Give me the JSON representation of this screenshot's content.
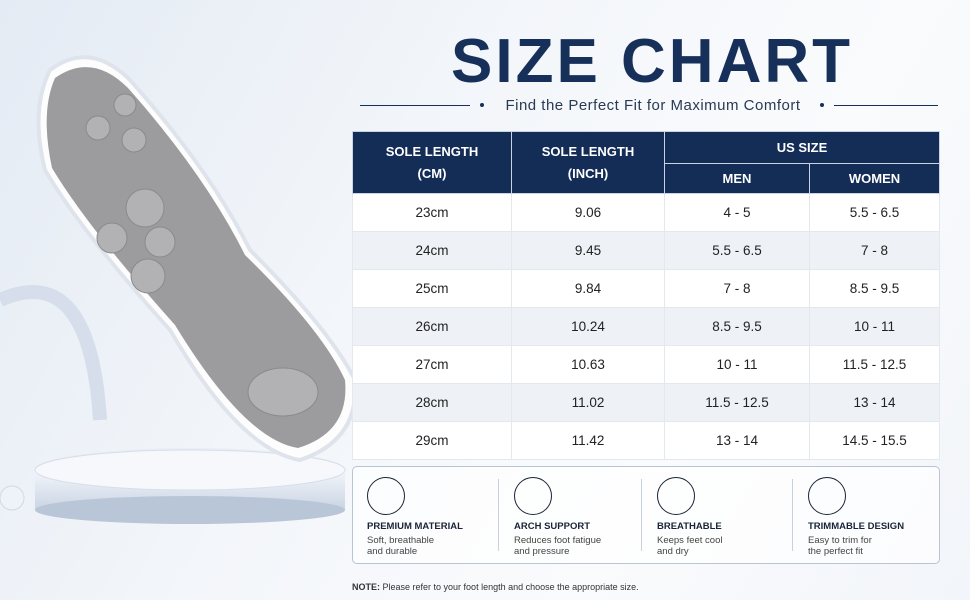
{
  "header": {
    "title": "SIZE CHART",
    "subtitle": "Find the Perfect Fit for Maximum Comfort"
  },
  "table": {
    "headers": [
      [
        "SOLE LENGTH",
        "(CM)"
      ],
      [
        "SOLE LENGTH",
        "(INCH)"
      ]
    ],
    "group_header": "US SIZE",
    "subheaders": [
      "MEN",
      "WOMEN"
    ],
    "rows": [
      [
        "23cm",
        "9.06",
        "4 - 5",
        "5.5 - 6.5"
      ],
      [
        "24cm",
        "9.45",
        "5.5 - 6.5",
        "7 - 8"
      ],
      [
        "25cm",
        "9.84",
        "7 - 8",
        "8.5 - 9.5"
      ],
      [
        "26cm",
        "10.24",
        "8.5 - 9.5",
        "10 - 11"
      ],
      [
        "27cm",
        "10.63",
        "10 - 11",
        "11.5 - 12.5"
      ],
      [
        "28cm",
        "11.02",
        "11.5 - 12.5",
        "13 - 14"
      ],
      [
        "29cm",
        "11.42",
        "13 - 14",
        "14.5 - 15.5"
      ]
    ]
  },
  "features": [
    {
      "title": "PREMIUM MATERIAL",
      "description": [
        "Soft, breathable",
        "and durable"
      ]
    },
    {
      "title": "ARCH SUPPORT",
      "description": [
        "Reduces foot fatigue",
        "and pressure"
      ]
    },
    {
      "title": "BREATHABLE",
      "description": [
        "Keeps feet cool",
        "and dry"
      ]
    },
    {
      "title": "TRIMMABLE DESIGN",
      "description": [
        "Easy to trim for",
        "the perfect fit"
      ]
    }
  ],
  "note": {
    "label": "NOTE:",
    "text": "Please refer to your foot length and choose the appropriate size."
  }
}
